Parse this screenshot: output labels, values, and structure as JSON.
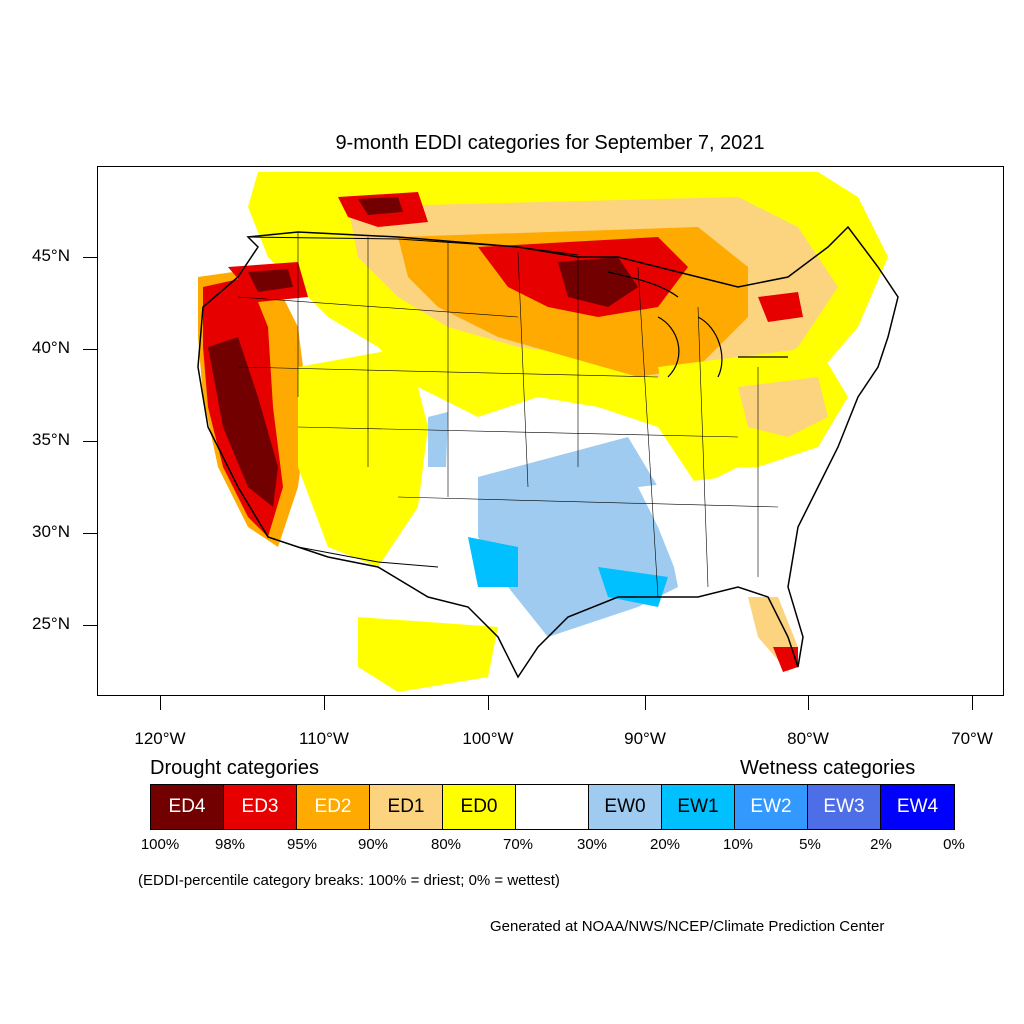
{
  "title": "9-month EDDI categories for September 7, 2021",
  "latitude_labels": [
    "45°N",
    "40°N",
    "35°N",
    "30°N",
    "25°N"
  ],
  "longitude_labels": [
    "120°W",
    "110°W",
    "100°W",
    "90°W",
    "80°W",
    "70°W"
  ],
  "legend": {
    "drought_heading": "Drought categories",
    "wetness_heading": "Wetness categories",
    "categories": [
      {
        "label": "ED4",
        "color": "#730000"
      },
      {
        "label": "ED3",
        "color": "#e60000"
      },
      {
        "label": "ED2",
        "color": "#ffaa00"
      },
      {
        "label": "ED1",
        "color": "#fcd37f"
      },
      {
        "label": "ED0",
        "color": "#ffff00"
      },
      {
        "label": "",
        "color": "#ffffff"
      },
      {
        "label": "EW0",
        "color": "#9ecbef"
      },
      {
        "label": "EW1",
        "color": "#00c0ff"
      },
      {
        "label": "EW2",
        "color": "#3399ff"
      },
      {
        "label": "EW3",
        "color": "#4d6ee6"
      },
      {
        "label": "EW4",
        "color": "#0000ff"
      }
    ],
    "percent_breaks": [
      "100%",
      "98%",
      "95%",
      "90%",
      "80%",
      "70%",
      "30%",
      "20%",
      "10%",
      "5%",
      "2%",
      "0%"
    ]
  },
  "note": "(EDDI-percentile category breaks: 100% = driest; 0% = wettest)",
  "credit": "Generated at NOAA/NWS/NCEP/Climate Prediction Center"
}
